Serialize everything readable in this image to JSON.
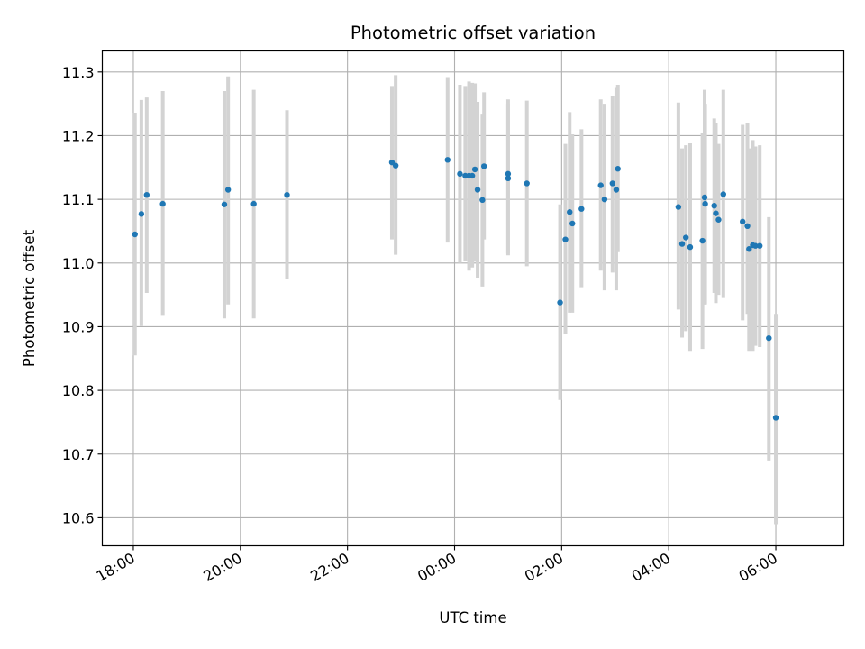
{
  "chart_data": {
    "type": "scatter",
    "title": "Photometric offset variation",
    "xlabel": "UTC time",
    "ylabel": "Photometric offset",
    "x_unit": "hours (UTC, past midnight of day 0; 18:00 = -6)",
    "xlim": [
      -6.58,
      7.27
    ],
    "ylim": [
      10.556,
      11.333
    ],
    "grid": true,
    "colors": {
      "points": "#1f77b4",
      "error_bars": "#d3d3d3"
    },
    "xticks": [
      {
        "value": -6,
        "label": "18:00"
      },
      {
        "value": -4,
        "label": "20:00"
      },
      {
        "value": -2,
        "label": "22:00"
      },
      {
        "value": 0,
        "label": "00:00"
      },
      {
        "value": 2,
        "label": "02:00"
      },
      {
        "value": 4,
        "label": "04:00"
      },
      {
        "value": 6,
        "label": "06:00"
      }
    ],
    "yticks": [
      {
        "value": 10.6,
        "label": "10.6"
      },
      {
        "value": 10.7,
        "label": "10.7"
      },
      {
        "value": 10.8,
        "label": "10.8"
      },
      {
        "value": 10.9,
        "label": "10.9"
      },
      {
        "value": 11.0,
        "label": "11.0"
      },
      {
        "value": 11.1,
        "label": "11.1"
      },
      {
        "value": 11.2,
        "label": "11.2"
      },
      {
        "value": 11.3,
        "label": "11.3"
      }
    ],
    "series": [
      {
        "points": [
          {
            "x": -5.97,
            "y": 11.045,
            "lo": 10.855,
            "hi": 11.236
          },
          {
            "x": -5.85,
            "y": 11.077,
            "lo": 10.901,
            "hi": 11.256
          },
          {
            "x": -5.75,
            "y": 11.107,
            "lo": 10.953,
            "hi": 11.26
          },
          {
            "x": -5.45,
            "y": 11.093,
            "lo": 10.917,
            "hi": 11.27
          },
          {
            "x": -4.3,
            "y": 11.092,
            "lo": 10.913,
            "hi": 11.27
          },
          {
            "x": -4.23,
            "y": 11.115,
            "lo": 10.935,
            "hi": 11.293
          },
          {
            "x": -3.75,
            "y": 11.093,
            "lo": 10.913,
            "hi": 11.272
          },
          {
            "x": -3.13,
            "y": 11.107,
            "lo": 10.975,
            "hi": 11.24
          },
          {
            "x": -1.17,
            "y": 11.158,
            "lo": 11.037,
            "hi": 11.278
          },
          {
            "x": -1.1,
            "y": 11.153,
            "lo": 11.013,
            "hi": 11.295
          },
          {
            "x": -0.13,
            "y": 11.162,
            "lo": 11.032,
            "hi": 11.292
          },
          {
            "x": 0.1,
            "y": 11.14,
            "lo": 11.0,
            "hi": 11.28
          },
          {
            "x": 0.2,
            "y": 11.137,
            "lo": 11.003,
            "hi": 11.278
          },
          {
            "x": 0.27,
            "y": 11.137,
            "lo": 10.988,
            "hi": 11.285
          },
          {
            "x": 0.33,
            "y": 11.137,
            "lo": 10.993,
            "hi": 11.283
          },
          {
            "x": 0.38,
            "y": 11.147,
            "lo": 11.002,
            "hi": 11.282
          },
          {
            "x": 0.43,
            "y": 11.115,
            "lo": 10.977,
            "hi": 11.253
          },
          {
            "x": 0.52,
            "y": 11.099,
            "lo": 10.963,
            "hi": 11.233
          },
          {
            "x": 0.55,
            "y": 11.152,
            "lo": 11.037,
            "hi": 11.268
          },
          {
            "x": 1.0,
            "y": 11.14,
            "lo": 11.012,
            "hi": 11.257
          },
          {
            "x": 1.0,
            "y": 11.133,
            "lo": 11.015,
            "hi": 11.25
          },
          {
            "x": 1.35,
            "y": 11.125,
            "lo": 10.995,
            "hi": 11.255
          },
          {
            "x": 1.97,
            "y": 10.938,
            "lo": 10.785,
            "hi": 11.092
          },
          {
            "x": 2.07,
            "y": 11.037,
            "lo": 10.888,
            "hi": 11.187
          },
          {
            "x": 2.15,
            "y": 11.08,
            "lo": 10.922,
            "hi": 11.237
          },
          {
            "x": 2.2,
            "y": 11.062,
            "lo": 10.922,
            "hi": 11.202
          },
          {
            "x": 2.37,
            "y": 11.085,
            "lo": 10.962,
            "hi": 11.21
          },
          {
            "x": 2.73,
            "y": 11.122,
            "lo": 10.988,
            "hi": 11.257
          },
          {
            "x": 2.8,
            "y": 11.1,
            "lo": 10.957,
            "hi": 11.25
          },
          {
            "x": 2.95,
            "y": 11.125,
            "lo": 10.985,
            "hi": 11.262
          },
          {
            "x": 3.02,
            "y": 11.115,
            "lo": 10.957,
            "hi": 11.275
          },
          {
            "x": 3.05,
            "y": 11.148,
            "lo": 11.017,
            "hi": 11.28
          },
          {
            "x": 4.18,
            "y": 11.088,
            "lo": 10.927,
            "hi": 11.252
          },
          {
            "x": 4.25,
            "y": 11.03,
            "lo": 10.883,
            "hi": 11.18
          },
          {
            "x": 4.32,
            "y": 11.04,
            "lo": 10.893,
            "hi": 11.185
          },
          {
            "x": 4.4,
            "y": 11.025,
            "lo": 10.862,
            "hi": 11.188
          },
          {
            "x": 4.63,
            "y": 11.035,
            "lo": 10.865,
            "hi": 11.205
          },
          {
            "x": 4.67,
            "y": 11.103,
            "lo": 10.935,
            "hi": 11.272
          },
          {
            "x": 4.68,
            "y": 11.093,
            "lo": 10.935,
            "hi": 11.25
          },
          {
            "x": 4.85,
            "y": 11.09,
            "lo": 10.953,
            "hi": 11.227
          },
          {
            "x": 4.88,
            "y": 11.078,
            "lo": 10.937,
            "hi": 11.22
          },
          {
            "x": 4.93,
            "y": 11.068,
            "lo": 10.95,
            "hi": 11.187
          },
          {
            "x": 5.02,
            "y": 11.108,
            "lo": 10.945,
            "hi": 11.272
          },
          {
            "x": 5.38,
            "y": 11.065,
            "lo": 10.91,
            "hi": 11.217
          },
          {
            "x": 5.47,
            "y": 11.058,
            "lo": 10.92,
            "hi": 11.22
          },
          {
            "x": 5.5,
            "y": 11.022,
            "lo": 10.862,
            "hi": 11.18
          },
          {
            "x": 5.57,
            "y": 11.028,
            "lo": 10.862,
            "hi": 11.193
          },
          {
            "x": 5.62,
            "y": 11.027,
            "lo": 10.87,
            "hi": 11.183
          },
          {
            "x": 5.7,
            "y": 11.027,
            "lo": 10.868,
            "hi": 11.185
          },
          {
            "x": 5.87,
            "y": 10.882,
            "lo": 10.69,
            "hi": 11.072
          },
          {
            "x": 6.0,
            "y": 10.757,
            "lo": 10.59,
            "hi": 10.92
          }
        ]
      }
    ]
  }
}
